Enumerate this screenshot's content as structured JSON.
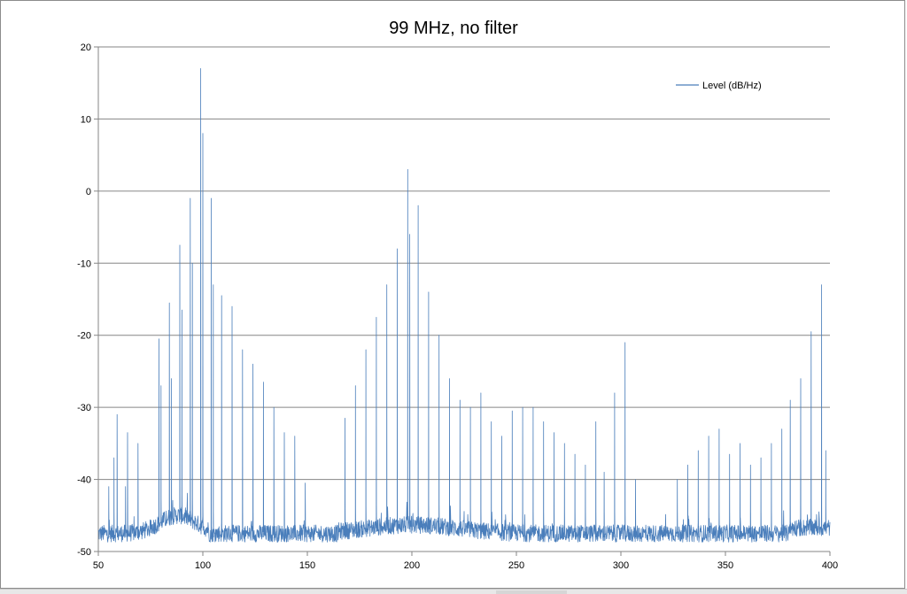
{
  "chart_data": {
    "type": "line",
    "title": "99 MHz, no filter",
    "xlabel": "",
    "ylabel": "",
    "xlim": [
      50,
      400
    ],
    "ylim": [
      -50,
      20
    ],
    "x_ticks": [
      50,
      100,
      150,
      200,
      250,
      300,
      350,
      400
    ],
    "y_ticks": [
      20,
      10,
      0,
      -10,
      -20,
      -30,
      -40,
      -50
    ],
    "grid": "horizontal",
    "legend_position": "top-right",
    "noise_floor": -47.5,
    "series": [
      {
        "name": "Level (dB/Hz)",
        "color": "#4a7ebb",
        "peaks": [
          {
            "x": 55,
            "y": -41
          },
          {
            "x": 57.5,
            "y": -37
          },
          {
            "x": 59,
            "y": -31
          },
          {
            "x": 63,
            "y": -41
          },
          {
            "x": 64,
            "y": -33.5
          },
          {
            "x": 69,
            "y": -35
          },
          {
            "x": 79,
            "y": -20.5
          },
          {
            "x": 80,
            "y": -27
          },
          {
            "x": 84,
            "y": -15.5
          },
          {
            "x": 85,
            "y": -26
          },
          {
            "x": 89,
            "y": -7.5
          },
          {
            "x": 90,
            "y": -16.5
          },
          {
            "x": 94,
            "y": -1
          },
          {
            "x": 95,
            "y": -10
          },
          {
            "x": 99,
            "y": 17
          },
          {
            "x": 100,
            "y": 8
          },
          {
            "x": 104,
            "y": -1
          },
          {
            "x": 105,
            "y": -13
          },
          {
            "x": 109,
            "y": -14.5
          },
          {
            "x": 114,
            "y": -16
          },
          {
            "x": 119,
            "y": -22
          },
          {
            "x": 124,
            "y": -24
          },
          {
            "x": 129,
            "y": -26.5
          },
          {
            "x": 134,
            "y": -30
          },
          {
            "x": 139,
            "y": -33.5
          },
          {
            "x": 144,
            "y": -34
          },
          {
            "x": 149,
            "y": -40.5
          },
          {
            "x": 168,
            "y": -31.5
          },
          {
            "x": 173,
            "y": -27
          },
          {
            "x": 178,
            "y": -22
          },
          {
            "x": 183,
            "y": -17.5
          },
          {
            "x": 188,
            "y": -13
          },
          {
            "x": 193,
            "y": -8
          },
          {
            "x": 198,
            "y": 3
          },
          {
            "x": 199,
            "y": -6
          },
          {
            "x": 203,
            "y": -2
          },
          {
            "x": 208,
            "y": -14
          },
          {
            "x": 213,
            "y": -20
          },
          {
            "x": 218,
            "y": -26
          },
          {
            "x": 223,
            "y": -29
          },
          {
            "x": 228,
            "y": -30
          },
          {
            "x": 233,
            "y": -28
          },
          {
            "x": 238,
            "y": -32
          },
          {
            "x": 243,
            "y": -34
          },
          {
            "x": 248,
            "y": -30.5
          },
          {
            "x": 253,
            "y": -30
          },
          {
            "x": 258,
            "y": -30
          },
          {
            "x": 263,
            "y": -32
          },
          {
            "x": 268,
            "y": -33.5
          },
          {
            "x": 273,
            "y": -35
          },
          {
            "x": 278,
            "y": -36.5
          },
          {
            "x": 283,
            "y": -38
          },
          {
            "x": 288,
            "y": -32
          },
          {
            "x": 292,
            "y": -39
          },
          {
            "x": 297,
            "y": -28
          },
          {
            "x": 302,
            "y": -21
          },
          {
            "x": 307,
            "y": -40
          },
          {
            "x": 327,
            "y": -40
          },
          {
            "x": 332,
            "y": -38
          },
          {
            "x": 337,
            "y": -36
          },
          {
            "x": 342,
            "y": -34
          },
          {
            "x": 347,
            "y": -33
          },
          {
            "x": 352,
            "y": -36.5
          },
          {
            "x": 357,
            "y": -35
          },
          {
            "x": 362,
            "y": -38
          },
          {
            "x": 367,
            "y": -37
          },
          {
            "x": 372,
            "y": -35
          },
          {
            "x": 377,
            "y": -33
          },
          {
            "x": 381,
            "y": -29
          },
          {
            "x": 386,
            "y": -26
          },
          {
            "x": 391,
            "y": -19.5
          },
          {
            "x": 396,
            "y": -13
          },
          {
            "x": 398,
            "y": -36
          }
        ]
      }
    ]
  }
}
